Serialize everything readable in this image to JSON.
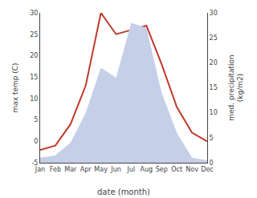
{
  "chart_data": {
    "type": "line",
    "xlabel": "date (month)",
    "ylabel": "max temp (C)",
    "y2label": "med. precipitation\n(kg/m2)",
    "categories": [
      "Jan",
      "Feb",
      "Mar",
      "Apr",
      "May",
      "Jun",
      "Jul",
      "Aug",
      "Sep",
      "Oct",
      "Nov",
      "Dec"
    ],
    "series": [
      {
        "type": "area",
        "axis": "y2",
        "color": "#c5cfe8",
        "values": [
          1,
          1.5,
          4,
          10,
          19,
          17,
          28,
          27,
          14,
          6,
          1,
          0.5
        ]
      },
      {
        "type": "line",
        "color": "#c0392b",
        "values": [
          -2,
          -1,
          4,
          13,
          30,
          25,
          26,
          27,
          18,
          8,
          2,
          0
        ]
      }
    ],
    "ylim": [
      -5,
      30
    ],
    "yticks": [
      -5,
      0,
      5,
      10,
      15,
      20,
      25,
      30
    ],
    "y2lim": [
      0,
      30
    ],
    "y2ticks": [
      0,
      5,
      10,
      15,
      20,
      25,
      30
    ],
    "grid": false
  }
}
